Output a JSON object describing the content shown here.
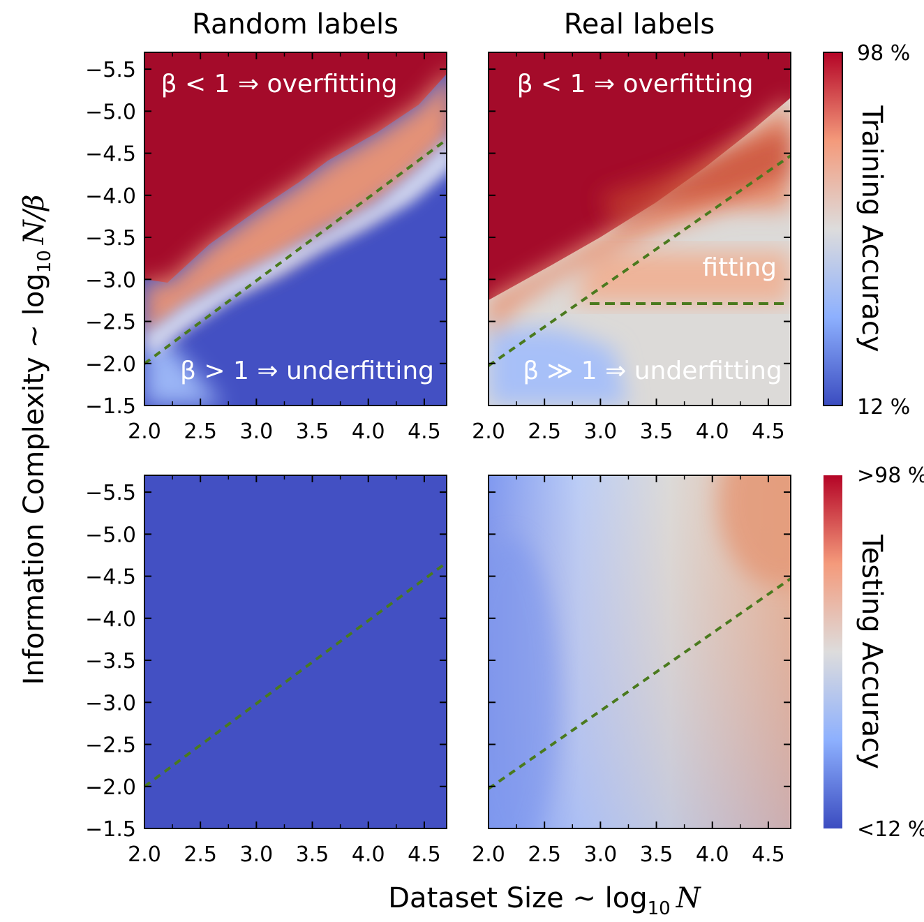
{
  "figure": {
    "xlabel": "Dataset Size ~ log",
    "xlabel_sub": "10",
    "xlabel_var": "N",
    "ylabel": "Information Complexity ~ log",
    "ylabel_sub": "10",
    "ylabel_var": "N/β",
    "col_titles": [
      "Random labels",
      "Real labels"
    ]
  },
  "colorbars": {
    "training": {
      "label": "Training Accuracy",
      "max_label": "98 %",
      "min_label": "12 %"
    },
    "testing": {
      "label": "Testing Accuracy",
      "max_label": ">98 %",
      "min_label": "<12 %"
    }
  },
  "colors": {
    "low": "#3b4cc0",
    "mid": "#dddddd",
    "high": "#b40426",
    "dash": "#4a7a1e"
  },
  "annotations": {
    "overfit_1": "β < 1 ⇒ overfitting",
    "underfit_1": "β > 1 ⇒ underfitting",
    "overfit_2": "β < 1 ⇒ overfitting",
    "underfit_2": "β ≫ 1 ⇒ underfitting",
    "fitting": "fitting"
  },
  "chart_data": [
    {
      "type": "heatmap",
      "panel": "train-random",
      "title": "Random labels",
      "xlim": [
        2.0,
        4.7
      ],
      "ylim": [
        -1.5,
        -5.7
      ],
      "xticks": [
        "2.0",
        "2.5",
        "3.0",
        "3.5",
        "4.0",
        "4.5"
      ],
      "yticks": [
        "−5.5",
        "−5.0",
        "−4.5",
        "−4.0",
        "−3.5",
        "−3.0",
        "−2.5",
        "−2.0",
        "−1.5"
      ],
      "metric": "Training Accuracy",
      "boundary": {
        "type": "dashed",
        "from": [
          2.0,
          -2.0
        ],
        "to": [
          4.7,
          -4.65
        ]
      },
      "regions": [
        "overfitting above boundary (≈98%)",
        "underfitting below boundary (≈12%)"
      ]
    },
    {
      "type": "heatmap",
      "panel": "train-real",
      "title": "Real labels",
      "xlim": [
        2.0,
        4.7
      ],
      "ylim": [
        -1.5,
        -5.7
      ],
      "xticks": [
        "2.0",
        "2.5",
        "3.0",
        "3.5",
        "4.0",
        "4.5"
      ],
      "metric": "Training Accuracy",
      "boundary": {
        "type": "dashed",
        "from": [
          2.0,
          -2.0
        ],
        "to": [
          4.7,
          -4.5
        ]
      },
      "boundary2": {
        "type": "dashed",
        "from": [
          2.9,
          -2.73
        ],
        "to": [
          4.65,
          -2.73
        ]
      },
      "regions": [
        "overfitting",
        "fitting",
        "underfitting"
      ]
    },
    {
      "type": "heatmap",
      "panel": "test-random",
      "xlim": [
        2.0,
        4.7
      ],
      "ylim": [
        -1.5,
        -5.7
      ],
      "xticks": [
        "2.0",
        "2.5",
        "3.0",
        "3.5",
        "4.0",
        "4.5"
      ],
      "yticks": [
        "−5.5",
        "−5.0",
        "−4.5",
        "−4.0",
        "−3.5",
        "−3.0",
        "−2.5",
        "−2.0",
        "−1.5"
      ],
      "metric": "Testing Accuracy",
      "boundary": {
        "type": "dashed",
        "from": [
          2.0,
          -2.0
        ],
        "to": [
          4.7,
          -4.65
        ]
      },
      "uniform_value": "<12%"
    },
    {
      "type": "heatmap",
      "panel": "test-real",
      "xlim": [
        2.0,
        4.7
      ],
      "ylim": [
        -1.5,
        -5.7
      ],
      "xticks": [
        "2.0",
        "2.5",
        "3.0",
        "3.5",
        "4.0",
        "4.5"
      ],
      "metric": "Testing Accuracy",
      "boundary": {
        "type": "dashed",
        "from": [
          2.0,
          -2.0
        ],
        "to": [
          4.7,
          -4.5
        ]
      },
      "trend": "increases with dataset size (left blue → right orange)"
    }
  ]
}
